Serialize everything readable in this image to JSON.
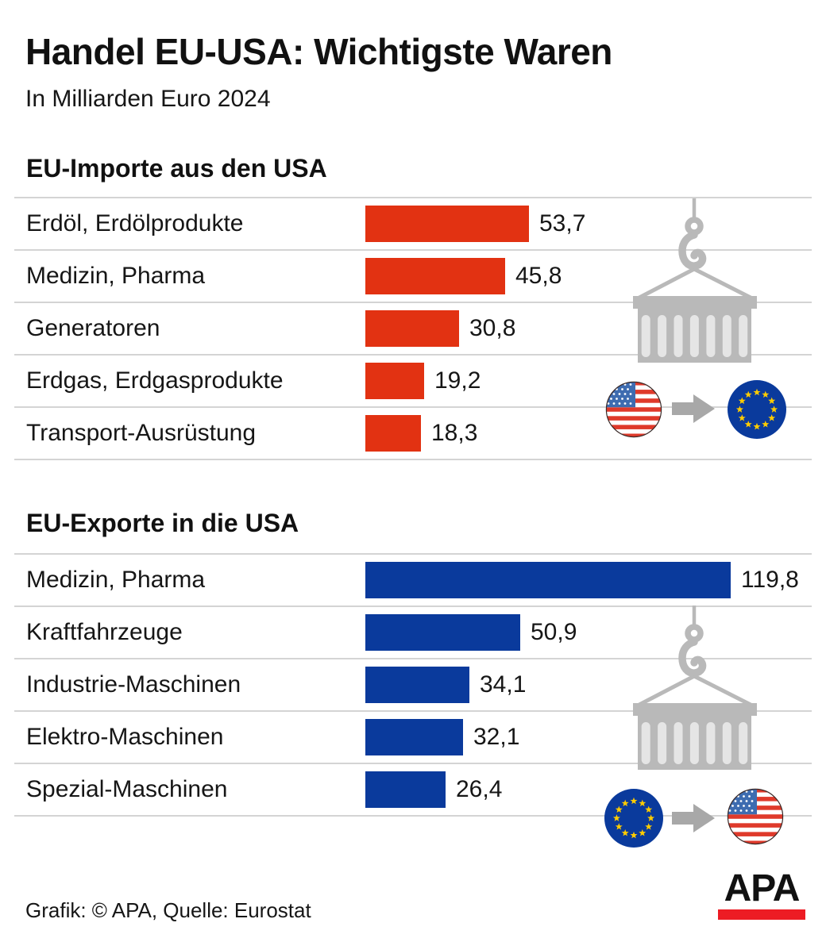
{
  "title": "Handel EU-USA: Wichtigste Waren",
  "subtitle": "In Milliarden Euro 2024",
  "footer": {
    "credit": "Grafik: © APA, Quelle: Eurostat",
    "logo_text": "APA"
  },
  "colors": {
    "import_bar": "#E23212",
    "export_bar": "#0A3A9C",
    "separator": "#D4D4D4",
    "icon_gray": "#B9B9B9",
    "slat_gray": "#E5E5E5",
    "arrow_gray": "#A8A8A8",
    "logo_red": "#ED1C24",
    "eu_flag_blue": "#0A3A9C",
    "star_yellow": "#FFCC00",
    "us_flag_red": "#DF3A2B",
    "us_canton_blue": "#3E6CB0",
    "text": "#161616"
  },
  "chart_data": [
    {
      "type": "bar",
      "orientation": "horizontal",
      "title": "EU-Importe aus den USA",
      "unit": "Milliarden Euro",
      "year": "2024",
      "categories": [
        "Erdöl, Erdölprodukte",
        "Medizin, Pharma",
        "Generatoren",
        "Erdgas, Erdgasprodukte",
        "Transport-Ausrüstung"
      ],
      "values": [
        53.7,
        45.8,
        30.8,
        19.2,
        18.3
      ],
      "value_labels": [
        "53,7",
        "45,8",
        "30,8",
        "19,2",
        "18,3"
      ],
      "bar_color": "#E23212",
      "xlim": [
        0,
        125
      ],
      "grid": false,
      "legend": false,
      "icon": "container-crane",
      "flow": {
        "from": "USA",
        "to": "EU"
      }
    },
    {
      "type": "bar",
      "orientation": "horizontal",
      "title": "EU-Exporte in die USA",
      "unit": "Milliarden Euro",
      "year": "2024",
      "categories": [
        "Medizin, Pharma",
        "Kraftfahrzeuge",
        "Industrie-Maschinen",
        "Elektro-Maschinen",
        "Spezial-Maschinen"
      ],
      "values": [
        119.8,
        50.9,
        34.1,
        32.1,
        26.4
      ],
      "value_labels": [
        "119,8",
        "50,9",
        "34,1",
        "32,1",
        "26,4"
      ],
      "bar_color": "#0A3A9C",
      "xlim": [
        0,
        125
      ],
      "grid": false,
      "legend": false,
      "icon": "container-crane",
      "flow": {
        "from": "EU",
        "to": "USA"
      }
    }
  ]
}
